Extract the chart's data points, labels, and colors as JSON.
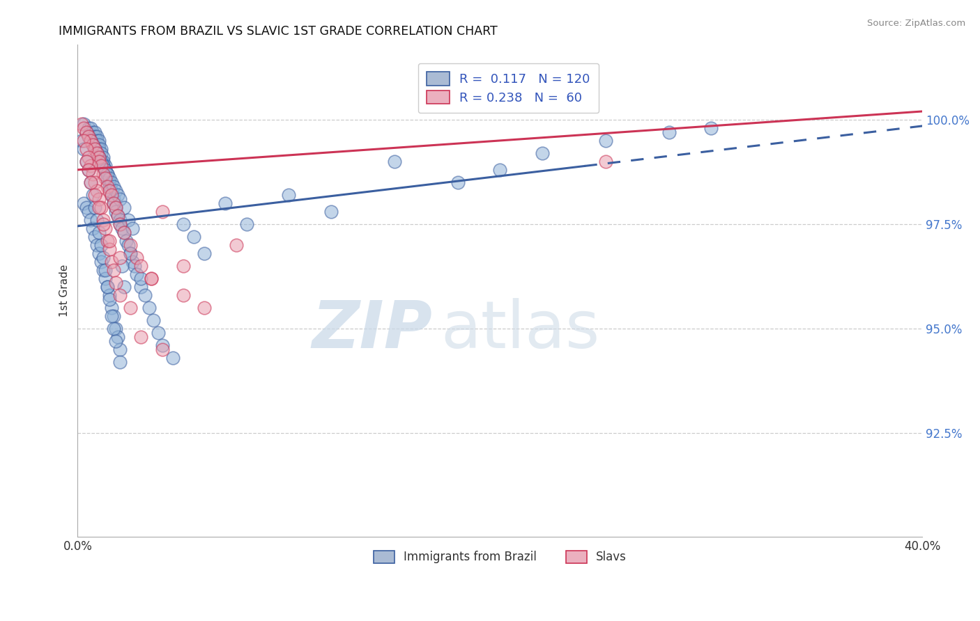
{
  "title": "IMMIGRANTS FROM BRAZIL VS SLAVIC 1ST GRADE CORRELATION CHART",
  "source": "Source: ZipAtlas.com",
  "xlabel_brazil": "Immigrants from Brazil",
  "xlabel_slavs": "Slavs",
  "ylabel": "1st Grade",
  "xmin": 0.0,
  "xmax": 40.0,
  "ymin": 90.0,
  "ymax": 101.8,
  "yticks": [
    92.5,
    95.0,
    97.5,
    100.0
  ],
  "ytick_labels": [
    "92.5%",
    "95.0%",
    "97.5%",
    "100.0%"
  ],
  "xtick_labels": [
    "0.0%",
    "40.0%"
  ],
  "R_brazil": 0.117,
  "N_brazil": 120,
  "R_slavs": 0.238,
  "N_slavs": 60,
  "blue_color": "#92B4D8",
  "pink_color": "#E8A0B0",
  "blue_line_color": "#3B5FA0",
  "pink_line_color": "#CC3355",
  "watermark_zip": "ZIP",
  "watermark_atlas": "atlas",
  "blue_line_y0": 97.45,
  "blue_line_y1": 99.85,
  "pink_line_y0": 98.8,
  "pink_line_y1": 100.2,
  "solid_end_x": 24.0,
  "brazil_dots_x": [
    0.3,
    0.5,
    0.6,
    0.7,
    0.8,
    0.8,
    0.9,
    0.9,
    1.0,
    1.0,
    1.0,
    1.1,
    1.1,
    1.2,
    1.2,
    1.2,
    1.3,
    1.3,
    1.4,
    1.4,
    1.5,
    1.5,
    1.6,
    1.6,
    1.7,
    1.7,
    1.8,
    1.8,
    1.9,
    2.0,
    2.0,
    2.1,
    2.2,
    2.3,
    2.4,
    2.5,
    2.6,
    2.7,
    2.8,
    3.0,
    3.2,
    3.4,
    3.6,
    3.8,
    4.0,
    4.5,
    5.0,
    5.5,
    6.0,
    7.0,
    8.0,
    10.0,
    12.0,
    15.0,
    18.0,
    20.0,
    22.0,
    25.0,
    28.0,
    30.0,
    0.4,
    0.5,
    0.6,
    0.7,
    0.8,
    0.9,
    1.0,
    1.1,
    1.2,
    1.3,
    1.4,
    1.5,
    1.6,
    1.7,
    1.8,
    1.9,
    2.0,
    2.2,
    2.4,
    2.6,
    0.3,
    0.4,
    0.5,
    0.6,
    0.7,
    0.8,
    0.9,
    1.0,
    1.1,
    1.2,
    1.3,
    1.4,
    1.5,
    1.6,
    1.7,
    1.8,
    1.9,
    2.0,
    2.1,
    2.2,
    0.2,
    0.3,
    0.4,
    0.5,
    0.6,
    0.7,
    0.8,
    0.9,
    1.0,
    1.1,
    1.2,
    1.3,
    1.4,
    1.5,
    1.6,
    1.7,
    1.8,
    2.0,
    2.5,
    3.0
  ],
  "brazil_dots_y": [
    99.9,
    99.8,
    99.8,
    99.7,
    99.7,
    99.6,
    99.6,
    99.5,
    99.5,
    99.4,
    99.3,
    99.3,
    99.2,
    99.1,
    99.0,
    98.9,
    98.9,
    98.8,
    98.7,
    98.6,
    98.5,
    98.4,
    98.3,
    98.2,
    98.1,
    98.0,
    97.9,
    97.8,
    97.7,
    97.6,
    97.5,
    97.4,
    97.3,
    97.1,
    97.0,
    96.8,
    96.6,
    96.5,
    96.3,
    96.0,
    95.8,
    95.5,
    95.2,
    94.9,
    94.6,
    94.3,
    97.5,
    97.2,
    96.8,
    98.0,
    97.5,
    98.2,
    97.8,
    99.0,
    98.5,
    98.8,
    99.2,
    99.5,
    99.7,
    99.8,
    99.7,
    99.6,
    99.5,
    99.4,
    99.3,
    99.2,
    99.1,
    99.0,
    98.9,
    98.8,
    98.7,
    98.6,
    98.5,
    98.4,
    98.3,
    98.2,
    98.1,
    97.9,
    97.6,
    97.4,
    98.0,
    97.9,
    97.8,
    97.6,
    97.4,
    97.2,
    97.0,
    96.8,
    96.6,
    96.4,
    96.2,
    96.0,
    95.8,
    95.5,
    95.3,
    95.0,
    94.8,
    94.5,
    96.5,
    96.0,
    99.5,
    99.3,
    99.0,
    98.8,
    98.5,
    98.2,
    97.9,
    97.6,
    97.3,
    97.0,
    96.7,
    96.4,
    96.0,
    95.7,
    95.3,
    95.0,
    94.7,
    94.2,
    96.8,
    96.2
  ],
  "slavs_dots_x": [
    0.2,
    0.3,
    0.4,
    0.5,
    0.6,
    0.7,
    0.8,
    0.9,
    1.0,
    1.0,
    1.1,
    1.2,
    1.3,
    1.4,
    1.5,
    1.6,
    1.7,
    1.8,
    1.9,
    2.0,
    2.2,
    2.5,
    2.8,
    3.0,
    3.5,
    4.0,
    5.0,
    6.0,
    7.5,
    25.0,
    0.3,
    0.4,
    0.5,
    0.6,
    0.7,
    0.8,
    0.9,
    1.0,
    1.1,
    1.2,
    1.3,
    1.4,
    1.5,
    1.6,
    1.7,
    1.8,
    2.0,
    2.5,
    3.0,
    4.0,
    0.4,
    0.5,
    0.6,
    0.8,
    1.0,
    1.2,
    1.5,
    2.0,
    3.5,
    5.0
  ],
  "slavs_dots_y": [
    99.9,
    99.8,
    99.7,
    99.6,
    99.5,
    99.4,
    99.3,
    99.2,
    99.1,
    99.0,
    98.9,
    98.7,
    98.6,
    98.4,
    98.3,
    98.2,
    98.0,
    97.9,
    97.7,
    97.5,
    97.3,
    97.0,
    96.7,
    96.5,
    96.2,
    97.8,
    96.5,
    95.5,
    97.0,
    99.0,
    99.5,
    99.3,
    99.1,
    98.9,
    98.7,
    98.5,
    98.3,
    98.1,
    97.9,
    97.6,
    97.4,
    97.1,
    96.9,
    96.6,
    96.4,
    96.1,
    95.8,
    95.5,
    94.8,
    94.5,
    99.0,
    98.8,
    98.5,
    98.2,
    97.9,
    97.5,
    97.1,
    96.7,
    96.2,
    95.8
  ]
}
